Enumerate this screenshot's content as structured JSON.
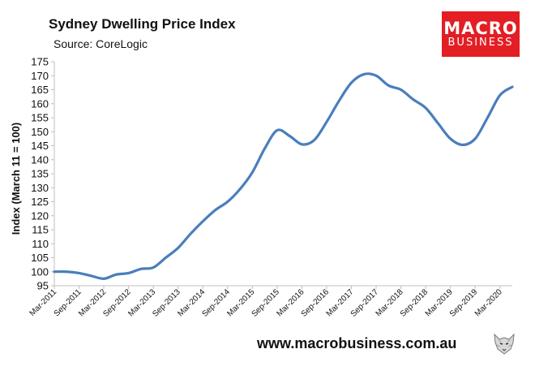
{
  "header": {
    "title": "Sydney Dwelling Price Index",
    "subtitle": "Source: CoreLogic"
  },
  "logo": {
    "line1": "MACRO",
    "line2": "BUSINESS",
    "color": "#e31e24"
  },
  "footer": {
    "url": "www.macrobusiness.com.au"
  },
  "chart_data": {
    "type": "line",
    "title": "Sydney Dwelling Price Index",
    "subtitle": "Source: CoreLogic",
    "ylabel": "Index (March 11 = 100)",
    "xlabel": "",
    "ylim": [
      95,
      175
    ],
    "yticks": [
      95,
      100,
      105,
      110,
      115,
      120,
      125,
      130,
      135,
      140,
      145,
      150,
      155,
      160,
      165,
      170,
      175
    ],
    "xlim": [
      "Mar-2011",
      "Jun-2020"
    ],
    "xtick_labels": [
      "Mar-2011",
      "Sep-2011",
      "Mar-2012",
      "Sep-2012",
      "Mar-2013",
      "Sep-2013",
      "Mar-2014",
      "Sep-2014",
      "Mar-2015",
      "Sep-2015",
      "Mar-2016",
      "Sep-2016",
      "Mar-2017",
      "Sep-2017",
      "Mar-2018",
      "Sep-2018",
      "Mar-2019",
      "Sep-2019",
      "Mar-2020"
    ],
    "grid": false,
    "line_color": "#4a7ebb",
    "series": [
      {
        "x": [
          "Mar-2011",
          "Jun-2011",
          "Sep-2011",
          "Dec-2011",
          "Mar-2012",
          "Jun-2012",
          "Sep-2012",
          "Dec-2012",
          "Mar-2013",
          "Jun-2013",
          "Sep-2013",
          "Dec-2013",
          "Mar-2014",
          "Jun-2014",
          "Sep-2014",
          "Dec-2014",
          "Mar-2015",
          "Jun-2015",
          "Sep-2015",
          "Dec-2015",
          "Mar-2016",
          "Jun-2016",
          "Sep-2016",
          "Dec-2016",
          "Mar-2017",
          "Jun-2017",
          "Sep-2017",
          "Dec-2017",
          "Mar-2018",
          "Jun-2018",
          "Sep-2018",
          "Dec-2018",
          "Mar-2019",
          "Jun-2019",
          "Sep-2019",
          "Dec-2019",
          "Mar-2020",
          "Jun-2020"
        ],
        "values": [
          100.0,
          100.0,
          99.5,
          98.5,
          97.5,
          99.0,
          99.5,
          101.0,
          101.5,
          105.0,
          108.5,
          113.5,
          118.0,
          122.0,
          125.0,
          129.5,
          135.5,
          144.0,
          150.5,
          148.5,
          145.5,
          147.0,
          153.5,
          161.0,
          167.5,
          170.5,
          170.0,
          166.5,
          165.0,
          161.5,
          158.5,
          153.0,
          147.5,
          145.3,
          147.5,
          155.0,
          163.0,
          166.0
        ]
      }
    ]
  }
}
